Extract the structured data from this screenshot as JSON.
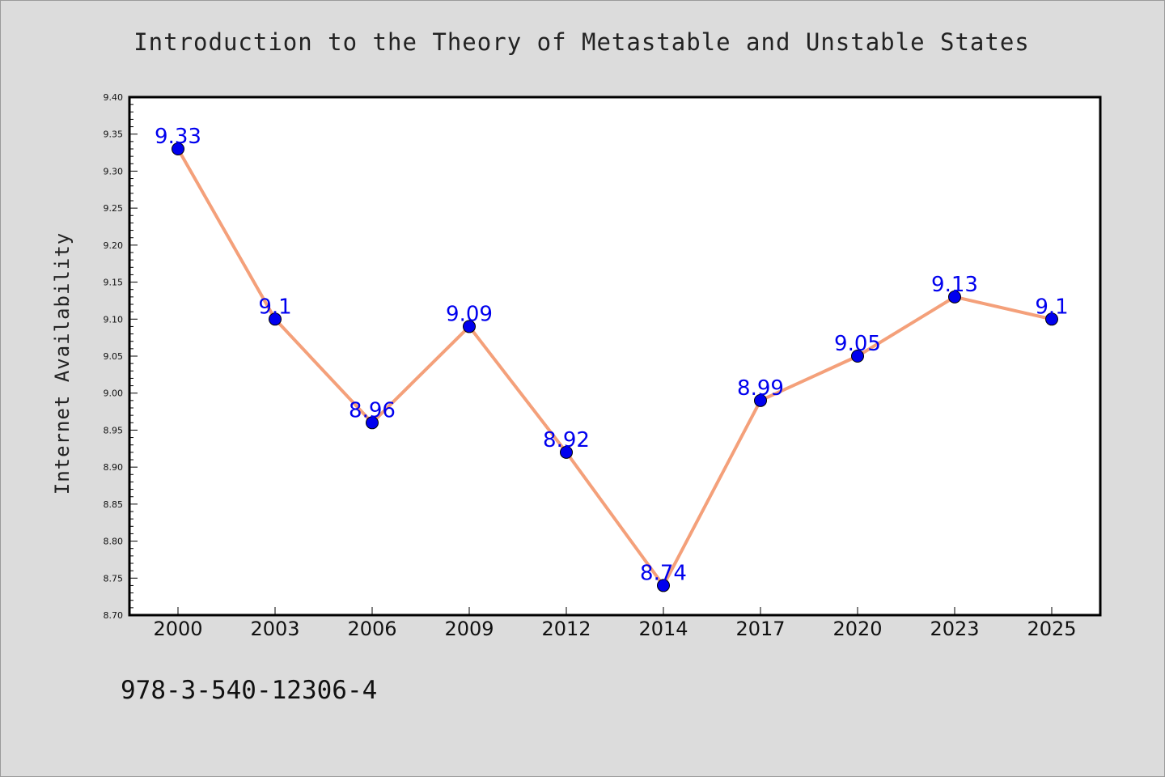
{
  "chart_data": {
    "type": "line",
    "title": "Introduction to the Theory of Metastable and Unstable States",
    "xlabel": "",
    "ylabel": "Internet Availability",
    "categories": [
      "2000",
      "2003",
      "2006",
      "2009",
      "2012",
      "2014",
      "2017",
      "2020",
      "2023",
      "2025"
    ],
    "series": [
      {
        "values": [
          9.33,
          9.1,
          8.96,
          9.09,
          8.92,
          8.74,
          8.99,
          9.05,
          9.13,
          9.1
        ]
      }
    ],
    "data_labels": [
      "9.33",
      "9.1",
      "8.96",
      "9.09",
      "8.92",
      "8.74",
      "8.99",
      "9.05",
      "9.13",
      "9.1"
    ],
    "ylim": [
      8.7,
      9.4
    ],
    "yticks": [
      "8.70",
      "8.75",
      "8.80",
      "8.85",
      "8.90",
      "8.95",
      "9.00",
      "9.05",
      "9.10",
      "9.15",
      "9.20",
      "9.25",
      "9.30",
      "9.35",
      "9.40"
    ],
    "grid": false,
    "colors": {
      "line": "#f4a07a",
      "marker": "#0000ee",
      "label": "#0000ee",
      "background": "#dcdcdc",
      "plot_background": "#ffffff"
    }
  },
  "footer": {
    "isbn": "978-3-540-12306-4"
  }
}
